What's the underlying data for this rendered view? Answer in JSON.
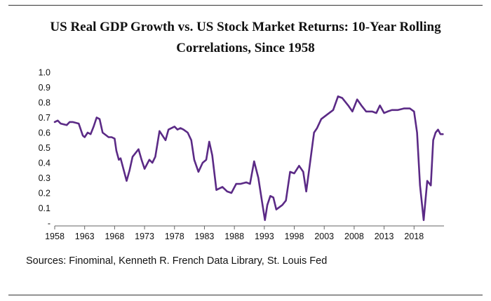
{
  "chart_data": {
    "type": "line",
    "title": "US Real GDP Growth vs. US Stock Market Returns: 10-Year Rolling Correlations, Since 1958",
    "xlabel": "",
    "ylabel": "",
    "xlim": [
      1958,
      2023
    ],
    "ylim": [
      0,
      1.0
    ],
    "y_ticks": [
      "1.0",
      "0.9",
      "0.8",
      "0.7",
      "0.6",
      "0.5",
      "0.4",
      "0.3",
      "0.2",
      "0.1",
      "-"
    ],
    "x_ticks": [
      "1958",
      "1963",
      "1968",
      "1973",
      "1978",
      "1983",
      "1988",
      "1993",
      "1998",
      "2003",
      "2008",
      "2013",
      "2018"
    ],
    "series": [
      {
        "name": "10-Year Rolling Correlation",
        "color": "#5b2a86",
        "x": [
          1958,
          1958.5,
          1959,
          1960,
          1960.5,
          1961,
          1962,
          1962.7,
          1963,
          1963.5,
          1964,
          1964.5,
          1965,
          1965.5,
          1966,
          1967,
          1967.5,
          1968,
          1968.3,
          1968.7,
          1969,
          1970,
          1970.5,
          1971,
          1972,
          1972.5,
          1973,
          1973.8,
          1974.3,
          1974.8,
          1975.5,
          1976.5,
          1977,
          1978,
          1978.5,
          1979,
          1979.5,
          1980.2,
          1980.8,
          1981.3,
          1982,
          1982.7,
          1983.3,
          1983.8,
          1984.3,
          1985,
          1986,
          1986.8,
          1987.5,
          1988.3,
          1989,
          1990,
          1990.6,
          1991.3,
          1992,
          1992.7,
          1993.1,
          1993.5,
          1994,
          1994.5,
          1995,
          1996,
          1996.6,
          1997.3,
          1998,
          1998.8,
          1999.5,
          2000,
          2000.5,
          2001.3,
          2001.8,
          2002.5,
          2003.5,
          2004.5,
          2005.3,
          2006,
          2007,
          2007.7,
          2008.5,
          2009.2,
          2010,
          2011,
          2011.7,
          2012.3,
          2013,
          2013.6,
          2014.3,
          2015.3,
          2016.3,
          2017.3,
          2018,
          2018.5,
          2019,
          2019.6,
          2020.2,
          2020.8,
          2021.2,
          2021.6,
          2022,
          2022.4,
          2022.8
        ],
        "values": [
          0.67,
          0.68,
          0.66,
          0.65,
          0.67,
          0.67,
          0.66,
          0.58,
          0.57,
          0.6,
          0.59,
          0.64,
          0.7,
          0.69,
          0.6,
          0.57,
          0.57,
          0.56,
          0.48,
          0.42,
          0.43,
          0.28,
          0.35,
          0.44,
          0.49,
          0.42,
          0.36,
          0.42,
          0.4,
          0.44,
          0.61,
          0.55,
          0.62,
          0.64,
          0.62,
          0.63,
          0.62,
          0.6,
          0.55,
          0.42,
          0.34,
          0.4,
          0.42,
          0.54,
          0.45,
          0.22,
          0.24,
          0.21,
          0.2,
          0.26,
          0.26,
          0.27,
          0.26,
          0.41,
          0.3,
          0.12,
          0.02,
          0.12,
          0.18,
          0.17,
          0.09,
          0.12,
          0.15,
          0.34,
          0.33,
          0.38,
          0.34,
          0.21,
          0.36,
          0.6,
          0.63,
          0.69,
          0.72,
          0.75,
          0.84,
          0.83,
          0.78,
          0.74,
          0.82,
          0.78,
          0.74,
          0.74,
          0.73,
          0.78,
          0.73,
          0.74,
          0.75,
          0.75,
          0.76,
          0.76,
          0.74,
          0.6,
          0.25,
          0.02,
          0.28,
          0.25,
          0.55,
          0.6,
          0.62,
          0.59,
          0.59
        ]
      }
    ]
  },
  "source_text": "Sources: Finominal, Kenneth R. French Data Library, St. Louis Fed"
}
